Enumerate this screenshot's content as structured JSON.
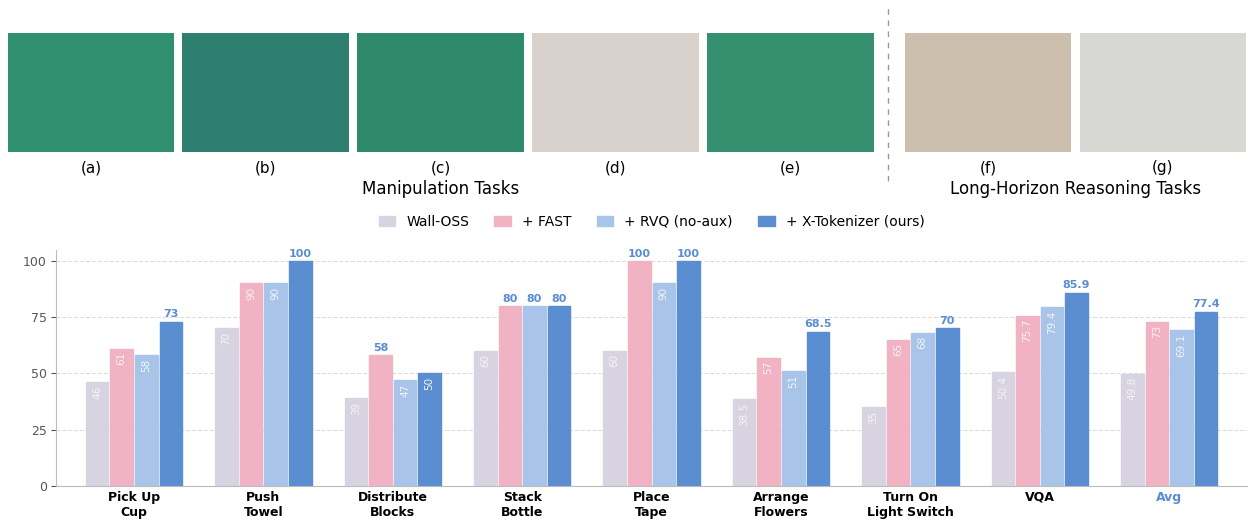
{
  "panels": {
    "groups": [
      {
        "title": "Manipulation Tasks",
        "labels": [
          "(a)",
          "(b)",
          "(c)",
          "(d)",
          "(e)"
        ]
      },
      {
        "title": "Long-Horizon Reasoning Tasks",
        "labels": [
          "(f)",
          "(g)"
        ]
      }
    ]
  },
  "chart_data": {
    "type": "bar",
    "categories": [
      "Pick Up\nCup",
      "Push\nTowel",
      "Distribute\nBlocks",
      "Stack\nBottle",
      "Place\nTape",
      "Arrange\nFlowers",
      "Turn On\nLight Switch",
      "VQA",
      "Avg"
    ],
    "series": [
      {
        "name": "Wall-OSS",
        "color": "#d8d3e0",
        "values": [
          46,
          70,
          39,
          60,
          60,
          38.5,
          35,
          50.4,
          49.8
        ]
      },
      {
        "name": "+ FAST",
        "color": "#f1b3c3",
        "values": [
          61,
          90,
          58,
          80,
          100,
          57,
          65,
          75.7,
          73
        ]
      },
      {
        "name": "+ RVQ (no-aux)",
        "color": "#a8c5e9",
        "values": [
          58,
          90,
          47,
          80,
          90,
          51,
          68,
          79.4,
          69.1
        ]
      },
      {
        "name": "+ X-Tokenizer (ours)",
        "color": "#5a8ed0",
        "values": [
          73,
          100,
          50,
          80,
          100,
          68.5,
          70,
          85.9,
          77.4
        ]
      }
    ],
    "ylim": [
      0,
      105
    ],
    "yticks": [
      0,
      25,
      50,
      75,
      100
    ],
    "grid": true,
    "legend": "upper center",
    "data_labels": true
  }
}
